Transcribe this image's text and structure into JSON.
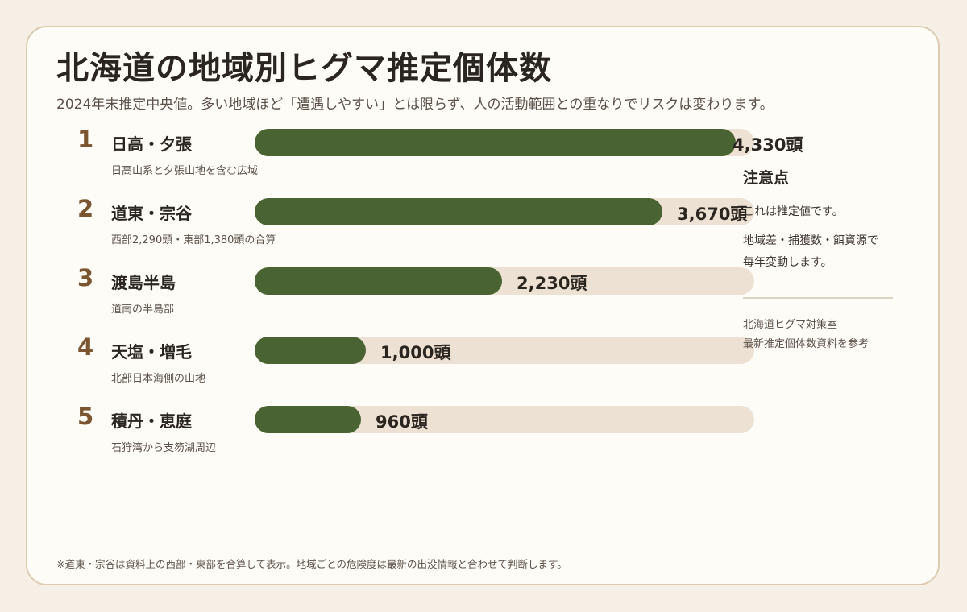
{
  "title": "北海道の地域別ヒグマ推定個体数",
  "subtitle": "2024年末推定中央値。多い地域ほど「遭遇しやすい」とは限らず、人の活動範囲との重なりでリスクは変わります。",
  "chart_data": {
    "type": "bar",
    "orientation": "horizontal",
    "title": "北海道の地域別ヒグマ推定個体数",
    "unit": "頭",
    "max": 4500,
    "categories": [
      "日高・夕張",
      "道東・宗谷",
      "渡島半島",
      "天塩・増毛",
      "積丹・恵庭"
    ],
    "values": [
      4330,
      3670,
      2230,
      1000,
      960
    ],
    "ranks": [
      "1",
      "2",
      "3",
      "4",
      "5"
    ],
    "value_labels": [
      "4,330頭",
      "3,670頭",
      "2,230頭",
      "1,000頭",
      "960頭"
    ],
    "descriptions": [
      "日高山系と夕張山地を含む広域",
      "西部2,290頭・東部1,380頭の合算",
      "道南の半島部",
      "北部日本海側の山地",
      "石狩湾から支笏湖周辺"
    ],
    "colors": {
      "bar": "#4a6332",
      "track": "#ece1d3",
      "rank": "#7a5530"
    }
  },
  "sidebar": {
    "heading": "注意点",
    "note1": "これは推定値です。",
    "note2_line1": "地域差・捕獲数・餌資源で",
    "note2_line2": "毎年変動します。",
    "source_line1": "北海道ヒグマ対策室",
    "source_line2": "最新推定個体数資料を参考"
  },
  "footnote": "※道東・宗谷は資料上の西部・東部を合算して表示。地域ごとの危険度は最新の出没情報と合わせて判断します。"
}
